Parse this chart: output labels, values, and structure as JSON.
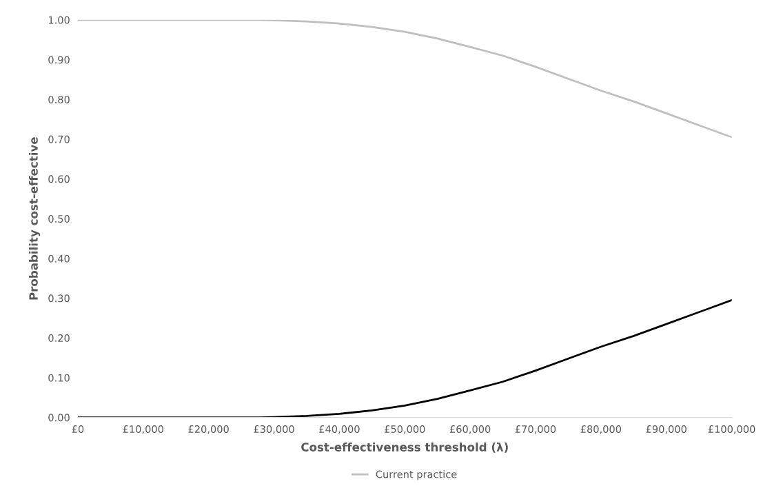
{
  "chart_data": {
    "type": "line",
    "xlabel": "Cost-effectiveness threshold (λ)",
    "ylabel": "Probability cost-effective",
    "x": [
      0,
      10000,
      20000,
      25000,
      28000,
      30000,
      35000,
      40000,
      45000,
      50000,
      55000,
      60000,
      65000,
      70000,
      75000,
      80000,
      85000,
      90000,
      95000,
      100000
    ],
    "series": [
      {
        "color": "#000000",
        "values": [
          0,
          0,
          0,
          0,
          0,
          0.001,
          0.004,
          0.009,
          0.018,
          0.03,
          0.047,
          0.068,
          0.09,
          0.118,
          0.148,
          0.178,
          0.205,
          0.235,
          0.265,
          0.295
        ]
      },
      {
        "name": "Current practice",
        "color": "#bfbfbf",
        "values": [
          1,
          1,
          1,
          1,
          1,
          0.999,
          0.996,
          0.991,
          0.982,
          0.97,
          0.953,
          0.932,
          0.91,
          0.882,
          0.852,
          0.822,
          0.795,
          0.765,
          0.735,
          0.705
        ]
      }
    ],
    "xlim": [
      0,
      100000
    ],
    "xticks": [
      {
        "value": 0,
        "label": "£0"
      },
      {
        "value": 10000,
        "label": "£10,000"
      },
      {
        "value": 20000,
        "label": "£20,000"
      },
      {
        "value": 30000,
        "label": "£30,000"
      },
      {
        "value": 40000,
        "label": "£40,000"
      },
      {
        "value": 50000,
        "label": "£50,000"
      },
      {
        "value": 60000,
        "label": "£60,000"
      },
      {
        "value": 70000,
        "label": "£70,000"
      },
      {
        "value": 80000,
        "label": "£80,000"
      },
      {
        "value": 90000,
        "label": "£90,000"
      },
      {
        "value": 100000,
        "label": "£100,000"
      }
    ],
    "ylim": [
      0,
      1
    ],
    "yticks": [
      {
        "value": 0,
        "label": "0.00"
      },
      {
        "value": 0.1,
        "label": "0.10"
      },
      {
        "value": 0.2,
        "label": "0.20"
      },
      {
        "value": 0.3,
        "label": "0.30"
      },
      {
        "value": 0.4,
        "label": "0.40"
      },
      {
        "value": 0.5,
        "label": "0.50"
      },
      {
        "value": 0.6,
        "label": "0.60"
      },
      {
        "value": 0.7,
        "label": "0.70"
      },
      {
        "value": 0.8,
        "label": "0.80"
      },
      {
        "value": 0.9,
        "label": "0.90"
      },
      {
        "value": 1,
        "label": "1.00"
      }
    ],
    "legend": "bottom",
    "marker": "none",
    "line_style": "solid"
  }
}
